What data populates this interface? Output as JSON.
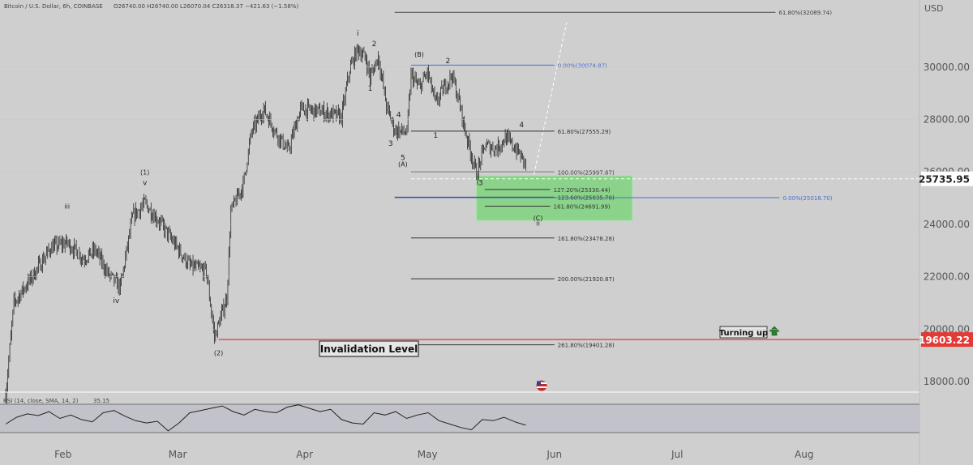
{
  "header": {
    "symbol_line": "Bitcoin / U.S. Dollar, 6h, COINBASE",
    "ohlc": "O26740.00  H26740.00  L26070.04  C26318.37  −421.63 (−1.58%)"
  },
  "chart_data": {
    "type": "candlestick",
    "currency": "USD",
    "y_ticks": [
      "30000.00",
      "28000.00",
      "26000.00",
      "24000.00",
      "22000.00",
      "20000.00",
      "18000.00"
    ],
    "y_range": [
      17500,
      32500
    ],
    "x_ticks": [
      "Feb",
      "Mar",
      "Apr",
      "May",
      "Jun",
      "Jul",
      "Aug"
    ],
    "price_path": [
      {
        "date": "2023-01-18",
        "price": 17500
      },
      {
        "date": "2023-01-20",
        "price": 21000
      },
      {
        "date": "2023-01-24",
        "price": 21900
      },
      {
        "date": "2023-01-29",
        "price": 23100
      },
      {
        "date": "2023-02-02",
        "price": 23300
      },
      {
        "date": "2023-02-06",
        "price": 22700
      },
      {
        "date": "2023-02-09",
        "price": 23000
      },
      {
        "date": "2023-02-12",
        "price": 22100
      },
      {
        "date": "2023-02-15",
        "price": 21600
      },
      {
        "date": "2023-02-18",
        "price": 24300
      },
      {
        "date": "2023-02-21",
        "price": 24800
      },
      {
        "date": "2023-02-25",
        "price": 24000
      },
      {
        "date": "2023-02-28",
        "price": 23300
      },
      {
        "date": "2023-03-04",
        "price": 22400
      },
      {
        "date": "2023-03-08",
        "price": 22200
      },
      {
        "date": "2023-03-10",
        "price": 19700
      },
      {
        "date": "2023-03-13",
        "price": 21200
      },
      {
        "date": "2023-03-14",
        "price": 24500
      },
      {
        "date": "2023-03-17",
        "price": 25500
      },
      {
        "date": "2023-03-19",
        "price": 27500
      },
      {
        "date": "2023-03-22",
        "price": 28400
      },
      {
        "date": "2023-03-25",
        "price": 27500
      },
      {
        "date": "2023-03-28",
        "price": 26800
      },
      {
        "date": "2023-03-31",
        "price": 28400
      },
      {
        "date": "2023-04-05",
        "price": 28300
      },
      {
        "date": "2023-04-10",
        "price": 28100
      },
      {
        "date": "2023-04-12",
        "price": 29900
      },
      {
        "date": "2023-04-14",
        "price": 30700
      },
      {
        "date": "2023-04-16",
        "price": 30300
      },
      {
        "date": "2023-04-17",
        "price": 29600
      },
      {
        "date": "2023-04-19",
        "price": 30400
      },
      {
        "date": "2023-04-21",
        "price": 28500
      },
      {
        "date": "2023-04-23",
        "price": 27600
      },
      {
        "date": "2023-04-26",
        "price": 27500
      },
      {
        "date": "2023-04-27",
        "price": 29700
      },
      {
        "date": "2023-04-29",
        "price": 29200
      },
      {
        "date": "2023-05-01",
        "price": 29800
      },
      {
        "date": "2023-05-03",
        "price": 28600
      },
      {
        "date": "2023-05-05",
        "price": 29200
      },
      {
        "date": "2023-05-07",
        "price": 29700
      },
      {
        "date": "2023-05-09",
        "price": 28500
      },
      {
        "date": "2023-05-10",
        "price": 27700
      },
      {
        "date": "2023-05-12",
        "price": 26500
      },
      {
        "date": "2023-05-13",
        "price": 25900
      },
      {
        "date": "2023-05-15",
        "price": 27000
      },
      {
        "date": "2023-05-18",
        "price": 26900
      },
      {
        "date": "2023-05-20",
        "price": 27300
      },
      {
        "date": "2023-05-23",
        "price": 26800
      },
      {
        "date": "2023-05-25",
        "price": 26300
      }
    ],
    "rsi": {
      "label": "RSI (14, close, SMA, 14, 2)",
      "value": "35.15",
      "levels": [
        70,
        30
      ],
      "values": [
        40,
        52,
        58,
        55,
        62,
        50,
        56,
        48,
        44,
        60,
        64,
        54,
        46,
        42,
        45,
        28,
        42,
        60,
        64,
        68,
        72,
        62,
        56,
        66,
        62,
        60,
        70,
        74,
        68,
        62,
        66,
        48,
        42,
        40,
        60,
        56,
        62,
        50,
        56,
        60,
        46,
        40,
        34,
        30,
        48,
        46,
        52,
        44,
        38
      ]
    },
    "price_tags": [
      {
        "value": "25735.95",
        "color": "#ffffff",
        "text_color": "#222222"
      },
      {
        "value": "19603.22",
        "color": "#e53935",
        "text_color": "#ffffff"
      }
    ],
    "fib_levels": [
      {
        "label": "61.80%(32089.74)",
        "price": 32089.74,
        "start": "2023-04-23",
        "end": "2023-07-25",
        "color": "#444444"
      },
      {
        "label": "0.00%(30074.87)",
        "price": 30074.87,
        "start": "2023-04-27",
        "end": "2023-06-01",
        "color": "#4a6fd6"
      },
      {
        "label": "61.80%(27555.29)",
        "price": 27555.29,
        "start": "2023-04-27",
        "end": "2023-06-01",
        "color": "#333333"
      },
      {
        "label": "100.00%(25997.87)",
        "price": 25997.87,
        "start": "2023-04-27",
        "end": "2023-06-01",
        "color": "#333333"
      },
      {
        "label": "127.20%(25330.44)",
        "price": 25330.44,
        "start": "2023-05-15",
        "end": "2023-05-31",
        "color": "#333333"
      },
      {
        "label": "123.60%(25035.70)",
        "price": 25035.7,
        "start": "2023-04-23",
        "end": "2023-06-01",
        "color": "#333333"
      },
      {
        "label": "161.80%(24691.99)",
        "price": 24691.99,
        "start": "2023-05-15",
        "end": "2023-05-31",
        "color": "#333333"
      },
      {
        "label": "0.00%(25018.70)",
        "price": 25018.7,
        "start": "2023-04-23",
        "end": "2023-07-26",
        "color": "#4a6fd6"
      },
      {
        "label": "161.80%(23478.28)",
        "price": 23478.28,
        "start": "2023-04-27",
        "end": "2023-06-01",
        "color": "#333333"
      },
      {
        "label": "200.00%(21920.87)",
        "price": 21920.87,
        "start": "2023-04-27",
        "end": "2023-06-01",
        "color": "#333333"
      },
      {
        "label": "261.80%(19401.28)",
        "price": 19401.28,
        "start": "2023-04-27",
        "end": "2023-06-01",
        "color": "#333333"
      }
    ],
    "target_zone": {
      "price_top": 25850,
      "price_bottom": 24150,
      "start": "2023-05-13",
      "end": "2023-06-20",
      "color": "#7fd37f"
    },
    "invalidation": {
      "label": "Invalidation Level",
      "price": 19603.22,
      "start": "2023-03-11",
      "color": "#e53935"
    },
    "current_price_line": {
      "price": 25735.95,
      "start": "2023-04-27"
    },
    "projection_path": [
      {
        "date": "2023-05-27",
        "price": 25900
      },
      {
        "date": "2023-06-04",
        "price": 31700
      }
    ],
    "wave_labels": [
      {
        "text": "i",
        "date": "2023-04-14",
        "price": 31200
      },
      {
        "text": "ii",
        "date": "2023-05-28",
        "price": 23950
      },
      {
        "text": "iii",
        "date": "2023-02-02",
        "price": 24600
      },
      {
        "text": "iv",
        "date": "2023-02-14",
        "price": 21000
      },
      {
        "text": "v",
        "date": "2023-02-21",
        "price": 25500
      },
      {
        "text": "(1)",
        "date": "2023-02-21",
        "price": 25900
      },
      {
        "text": "(2)",
        "date": "2023-03-11",
        "price": 19000
      },
      {
        "text": "(B)",
        "date": "2023-04-29",
        "price": 30400
      },
      {
        "text": "(A)",
        "date": "2023-04-25",
        "price": 26200
      },
      {
        "text": "(C)",
        "date": "2023-05-28",
        "price": 24150
      },
      {
        "text": "2",
        "date": "2023-04-18",
        "price": 30800
      },
      {
        "text": "1",
        "date": "2023-04-17",
        "price": 29100
      },
      {
        "text": "4",
        "date": "2023-04-24",
        "price": 28100
      },
      {
        "text": "3",
        "date": "2023-04-22",
        "price": 27000
      },
      {
        "text": "5",
        "date": "2023-04-25",
        "price": 26450
      },
      {
        "text": "2",
        "date": "2023-05-06",
        "price": 30150
      },
      {
        "text": "1",
        "date": "2023-05-03",
        "price": 27300
      },
      {
        "text": "3",
        "date": "2023-05-14",
        "price": 25500
      },
      {
        "text": "4",
        "date": "2023-05-24",
        "price": 27700
      }
    ],
    "annotations": [
      {
        "text": "Turning up",
        "date": "2023-07-20",
        "price": 20000
      }
    ]
  }
}
